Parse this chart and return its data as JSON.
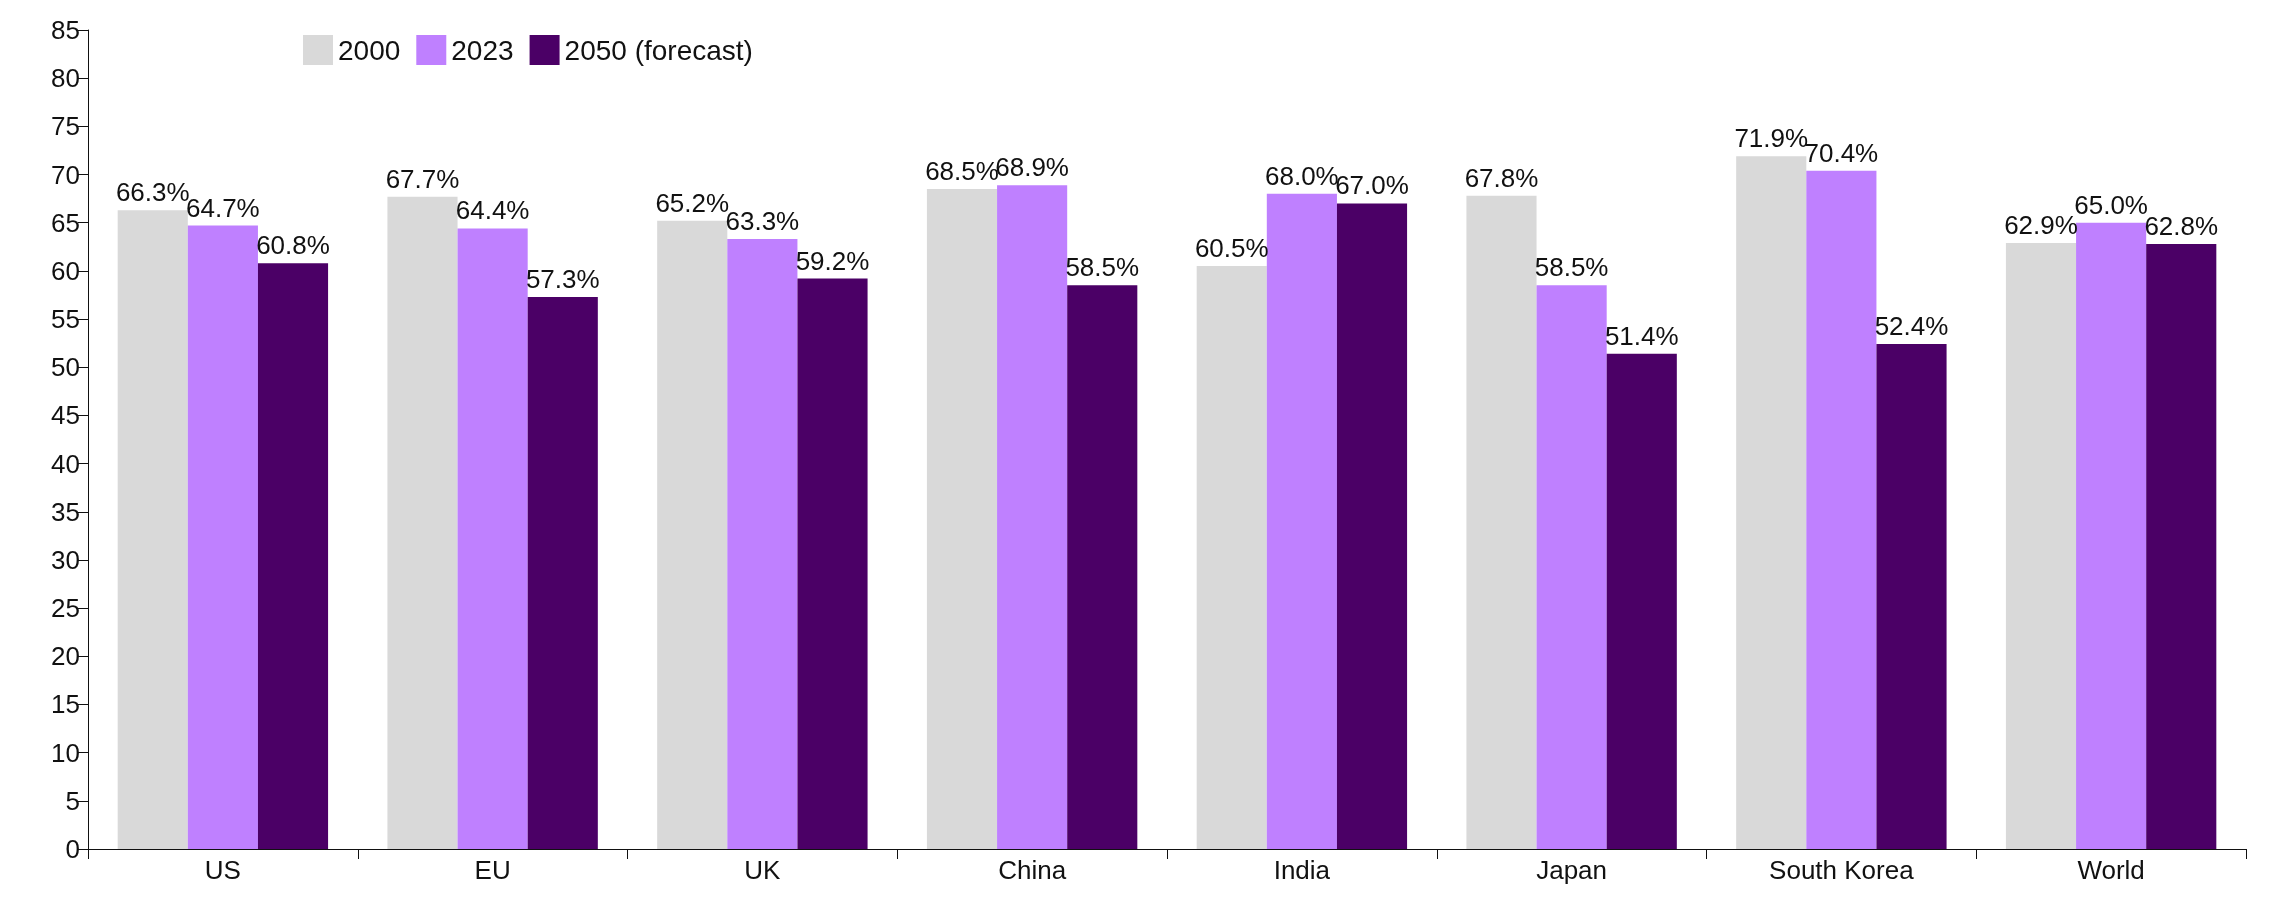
{
  "chart_data": {
    "type": "bar",
    "categories": [
      "US",
      "EU",
      "UK",
      "China",
      "India",
      "Japan",
      "South Korea",
      "World"
    ],
    "series": [
      {
        "name": "2000",
        "color": "#d9d9d9",
        "values": [
          66.3,
          67.7,
          65.2,
          68.5,
          60.5,
          67.8,
          71.9,
          62.9
        ],
        "value_labels": [
          "66.3%",
          "67.7%",
          "65.2%",
          "68.5%",
          "60.5%",
          "67.8%",
          "71.9%",
          "62.9%"
        ]
      },
      {
        "name": "2023",
        "color": "#bf80ff",
        "values": [
          64.7,
          64.4,
          63.3,
          68.9,
          68.0,
          58.5,
          70.4,
          65.0
        ],
        "value_labels": [
          "64.7%",
          "64.4%",
          "63.3%",
          "68.9%",
          "68.0%",
          "58.5%",
          "70.4%",
          "65.0%"
        ]
      },
      {
        "name": "2050 (forecast)",
        "color": "#4b0066",
        "values": [
          60.8,
          57.3,
          59.2,
          58.5,
          67.0,
          51.4,
          52.4,
          62.8
        ],
        "value_labels": [
          "60.8%",
          "57.3%",
          "59.2%",
          "58.5%",
          "67.0%",
          "51.4%",
          "52.4%",
          "62.8%"
        ]
      }
    ],
    "ylim": [
      0,
      85
    ],
    "yticks": [
      0,
      5,
      10,
      15,
      20,
      25,
      30,
      35,
      40,
      45,
      50,
      55,
      60,
      65,
      70,
      75,
      80,
      85
    ],
    "grid": false,
    "legend": "top left"
  }
}
